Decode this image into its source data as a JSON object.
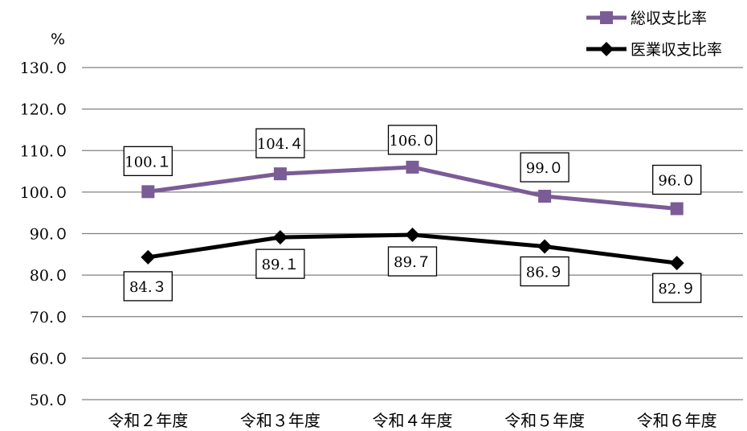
{
  "chart_data": {
    "type": "line",
    "categories": [
      "令和２年度",
      "令和３年度",
      "令和４年度",
      "令和５年度",
      "令和６年度"
    ],
    "series": [
      {
        "name": "総収支比率",
        "values": [
          100.1,
          104.4,
          106.0,
          99.0,
          96.0
        ],
        "color": "#7a5c96",
        "marker": "square"
      },
      {
        "name": "医業収支比率",
        "values": [
          84.3,
          89.1,
          89.7,
          86.9,
          82.9
        ],
        "color": "#000000",
        "marker": "diamond"
      }
    ],
    "ylabel": "%",
    "ylim": [
      50,
      130
    ],
    "ytick_step": 10,
    "ytick_labels": [
      "50.０",
      "60.０",
      "70.０",
      "80.０",
      "90.０",
      "100.０",
      "110.０",
      "120.０",
      "130.０"
    ],
    "data_labels": {
      "総収支比率": [
        "100.１",
        "104.４",
        "106.０",
        "99.０",
        "96.０"
      ],
      "医業収支比率": [
        "84.３",
        "89.１",
        "89.７",
        "86.９",
        "82.９"
      ]
    },
    "grid": true,
    "legend_position": "top-right"
  }
}
